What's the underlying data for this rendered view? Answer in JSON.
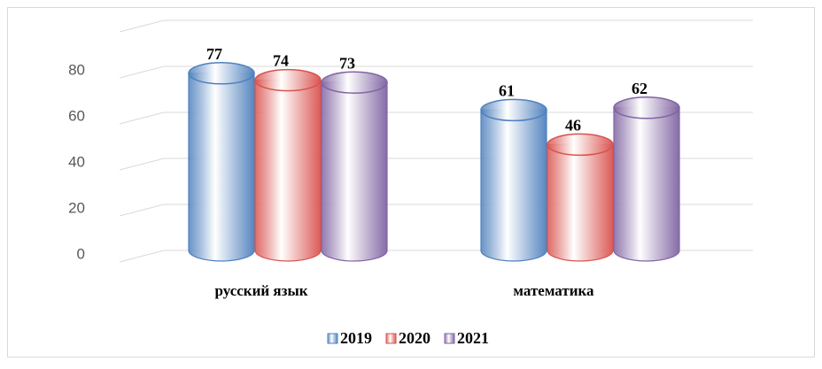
{
  "chart_data": {
    "type": "bar3d",
    "categories": [
      "русский язык",
      "математика"
    ],
    "series": [
      {
        "name": "2019",
        "color": "#4f81bd",
        "values": [
          77,
          61
        ]
      },
      {
        "name": "2020",
        "color": "#d9534f",
        "values": [
          74,
          46
        ]
      },
      {
        "name": "2021",
        "color": "#8064a2",
        "values": [
          73,
          62
        ]
      }
    ],
    "ylim": [
      0,
      100
    ],
    "yticks": [
      0,
      20,
      40,
      60,
      80
    ],
    "grid": true,
    "legend": "bottom"
  }
}
